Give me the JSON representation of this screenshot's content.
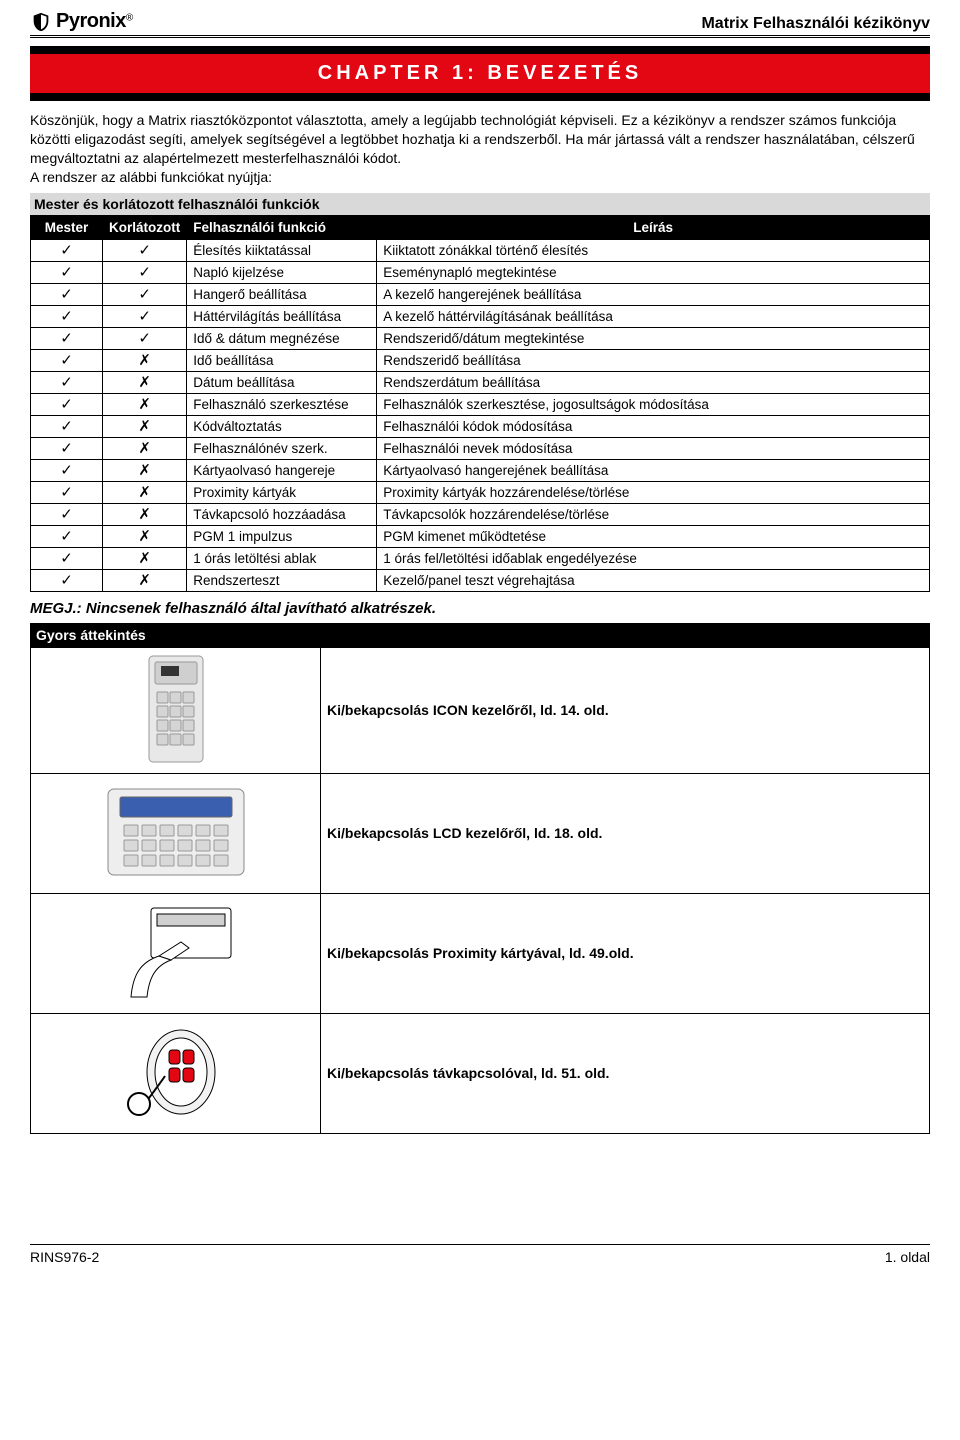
{
  "brand": "Pyronix",
  "header_title": "Matrix Felhasználói kézikönyv",
  "chapter_title": "CHAPTER 1: BEVEZETÉS",
  "intro_text": "Köszönjük, hogy a Matrix riasztóközpontot választotta, amely a legújabb technológiát képviseli. Ez a kézikönyv a rendszer számos funkciója közötti eligazodást segíti, amelyek segítségével a legtöbbet hozhatja ki a rendszerből. Ha már jártassá vált a rendszer használatában, célszerű megváltoztatni az alapértelmezett mesterfelhasználói kódot.\nA rendszer az alábbi funkciókat nyújtja:",
  "section_functions": "Mester és korlátozott felhasználói funkciók",
  "tbl": {
    "headers": [
      "Mester",
      "Korlátozott",
      "Felhasználói funkció",
      "Leírás"
    ],
    "rows": [
      {
        "m": "✓",
        "k": "✓",
        "f": "Élesítés kiiktatással",
        "d": "Kiiktatott zónákkal történő élesítés"
      },
      {
        "m": "✓",
        "k": "✓",
        "f": "Napló kijelzése",
        "d": "Eseménynapló megtekintése"
      },
      {
        "m": "✓",
        "k": "✓",
        "f": "Hangerő beállítása",
        "d": "A kezelő hangerejének beállítása"
      },
      {
        "m": "✓",
        "k": "✓",
        "f": "Háttérvilágítás beállítása",
        "d": "A kezelő háttérvilágításának beállítása"
      },
      {
        "m": "✓",
        "k": "✓",
        "f": "Idő & dátum megnézése",
        "d": "Rendszeridő/dátum megtekintése"
      },
      {
        "m": "✓",
        "k": "✗",
        "f": "Idő beállítása",
        "d": "Rendszeridő beállítása"
      },
      {
        "m": "✓",
        "k": "✗",
        "f": "Dátum beállítása",
        "d": "Rendszerdátum beállítása"
      },
      {
        "m": "✓",
        "k": "✗",
        "f": "Felhasználó szerkesztése",
        "d": "Felhasználók szerkesztése, jogosultságok módosítása"
      },
      {
        "m": "✓",
        "k": "✗",
        "f": "Kódváltoztatás",
        "d": "Felhasználói kódok módosítása"
      },
      {
        "m": "✓",
        "k": "✗",
        "f": "Felhasználónév szerk.",
        "d": "Felhasználói nevek módosítása"
      },
      {
        "m": "✓",
        "k": "✗",
        "f": "Kártyaolvasó hangereje",
        "d": "Kártyaolvasó hangerejének beállítása"
      },
      {
        "m": "✓",
        "k": "✗",
        "f": "Proximity kártyák",
        "d": "Proximity kártyák hozzárendelése/törlése"
      },
      {
        "m": "✓",
        "k": "✗",
        "f": "Távkapcsoló hozzáadása",
        "d": "Távkapcsolók hozzárendelése/törlése"
      },
      {
        "m": "✓",
        "k": "✗",
        "f": "PGM 1 impulzus",
        "d": "PGM kimenet működtetése"
      },
      {
        "m": "✓",
        "k": "✗",
        "f": "1 órás letöltési ablak",
        "d": "1 órás fel/letöltési időablak engedélyezése"
      },
      {
        "m": "✓",
        "k": "✗",
        "f": "Rendszerteszt",
        "d": "Kezelő/panel teszt végrehajtása"
      }
    ]
  },
  "note": "MEGJ.: Nincsenek felhasználó által javítható alkatrészek.",
  "quick_title": "Gyors áttekintés",
  "quick": [
    {
      "label": "Ki/bekapcsolás ICON kezelőről, ld. 14. old.",
      "icon": "icon-keypad"
    },
    {
      "label": "Ki/bekapcsolás LCD kezelőről, ld. 18. old.",
      "icon": "lcd-keypad"
    },
    {
      "label": "Ki/bekapcsolás Proximity kártyával, ld. 49.old.",
      "icon": "prox-card"
    },
    {
      "label": "Ki/bekapcsolás távkapcsolóval, ld. 51. old.",
      "icon": "keyfob"
    }
  ],
  "footer_left": "RINS976-2",
  "footer_right": "1. oldal",
  "colors": {
    "red": "#e30613",
    "black": "#000000",
    "grey": "#d9d9d9"
  }
}
